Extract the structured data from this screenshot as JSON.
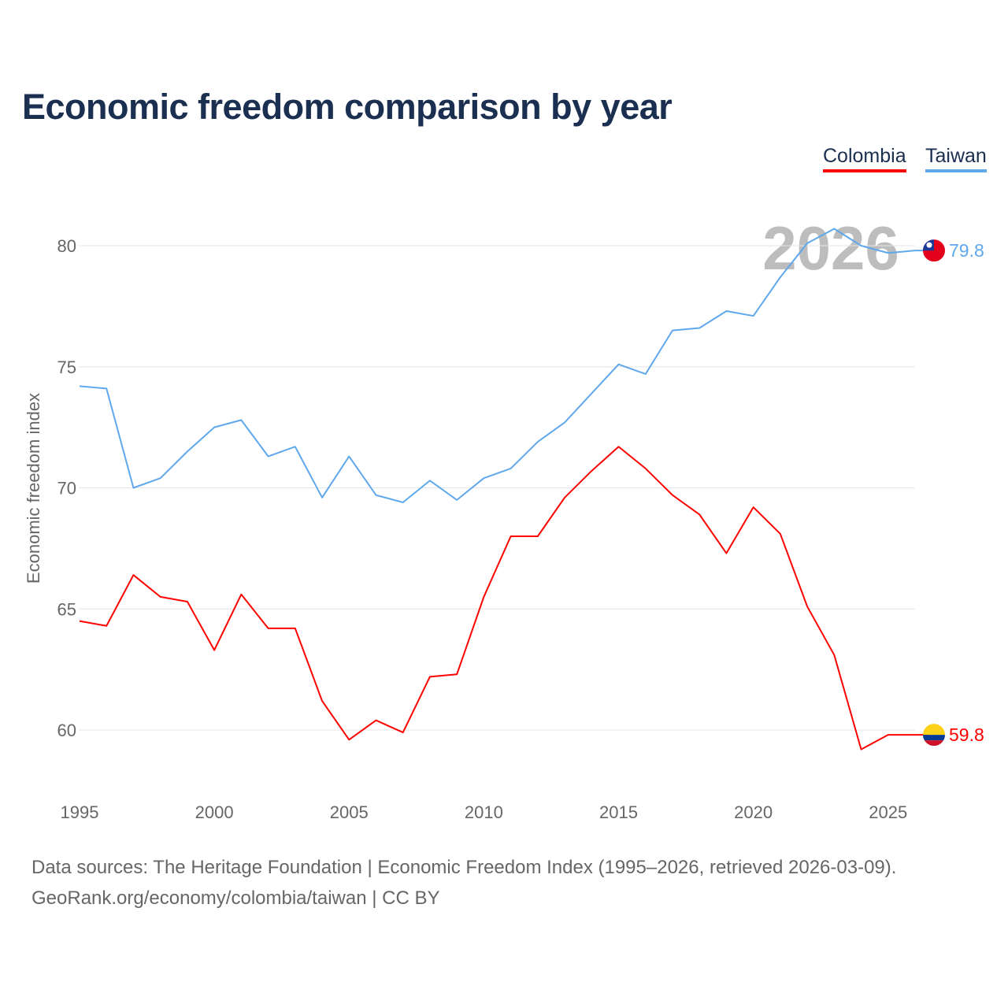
{
  "chart_data": {
    "type": "line",
    "title": "Economic freedom comparison by year",
    "xlabel": "",
    "ylabel": "Economic freedom index",
    "x": [
      1995,
      1996,
      1997,
      1998,
      1999,
      2000,
      2001,
      2002,
      2003,
      2004,
      2005,
      2006,
      2007,
      2008,
      2009,
      2010,
      2011,
      2012,
      2013,
      2014,
      2015,
      2016,
      2017,
      2018,
      2019,
      2020,
      2021,
      2022,
      2023,
      2024,
      2025,
      2026
    ],
    "xlim": [
      1995,
      2026
    ],
    "ylim": [
      57.5,
      82
    ],
    "xticks": [
      1995,
      2000,
      2005,
      2010,
      2015,
      2020,
      2025
    ],
    "yticks": [
      60,
      65,
      70,
      75,
      80
    ],
    "grid": true,
    "legend_position": "top-right",
    "watermark_year": "2026",
    "series": [
      {
        "name": "Colombia",
        "color": "#ff0000",
        "end_label": "59.8",
        "values": [
          64.5,
          64.3,
          66.4,
          65.5,
          65.3,
          63.3,
          65.6,
          64.2,
          64.2,
          61.2,
          59.6,
          60.4,
          59.9,
          62.2,
          62.3,
          65.5,
          68.0,
          68.0,
          69.6,
          70.7,
          71.7,
          70.8,
          69.7,
          68.9,
          67.3,
          69.2,
          68.1,
          65.1,
          63.1,
          59.2,
          59.8,
          59.8
        ]
      },
      {
        "name": "Taiwan",
        "color": "#5fa8ec",
        "end_label": "79.8",
        "values": [
          74.2,
          74.1,
          70.0,
          70.4,
          71.5,
          72.5,
          72.8,
          71.3,
          71.7,
          69.6,
          71.3,
          69.7,
          69.4,
          70.3,
          69.5,
          70.4,
          70.8,
          71.9,
          72.7,
          73.9,
          75.1,
          74.7,
          76.5,
          76.6,
          77.3,
          77.1,
          78.7,
          80.1,
          80.7,
          80.0,
          79.7,
          79.8
        ]
      }
    ]
  },
  "sources": {
    "line1": "Data sources: The Heritage Foundation | Economic Freedom Index (1995–2026, retrieved 2026-03-09).",
    "line2": "GeoRank.org/economy/colombia/taiwan | CC BY"
  }
}
